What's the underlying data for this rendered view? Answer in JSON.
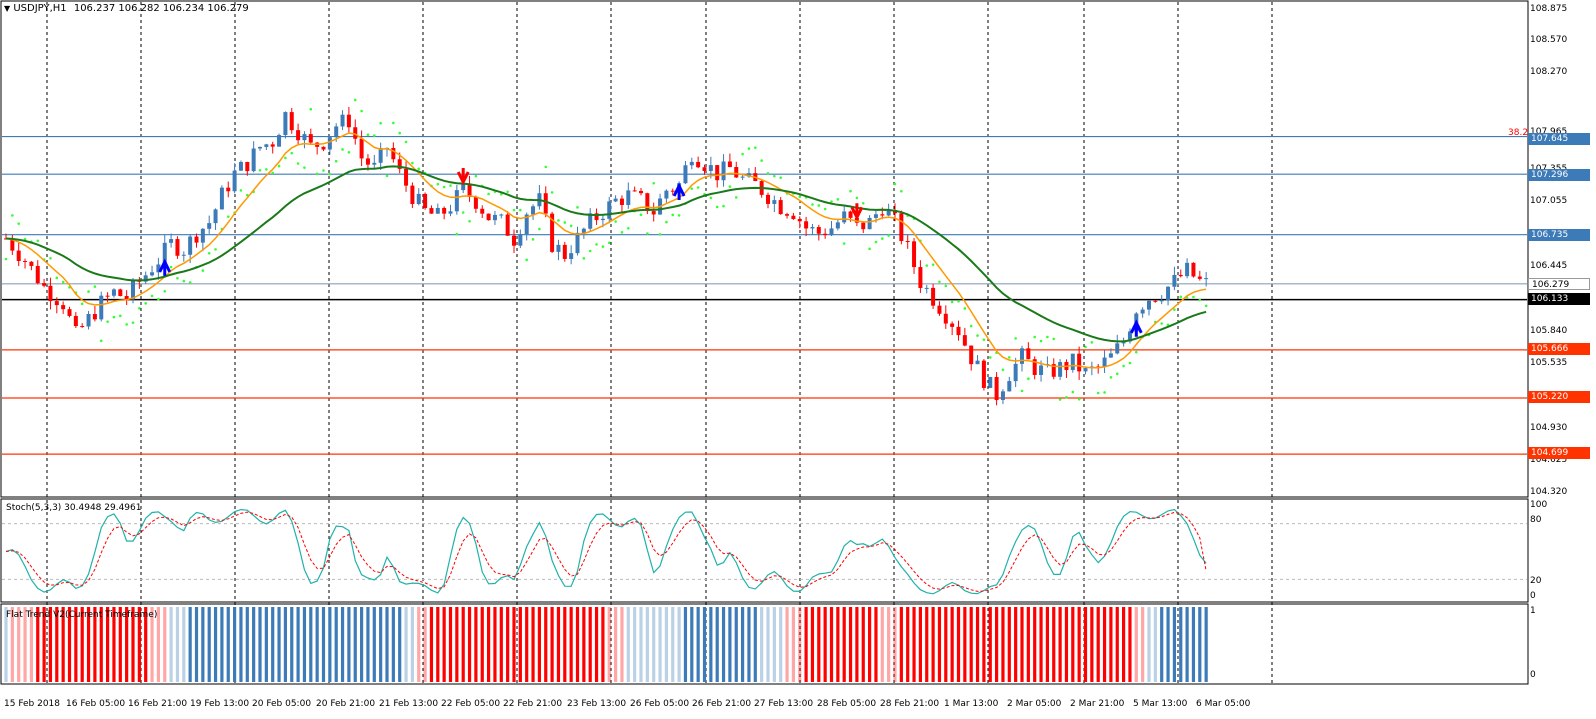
{
  "header": {
    "symbol_label": "USDJPY,H1",
    "ohlc": "106.237 106.282 106.234 106.279"
  },
  "stoch_pane": {
    "title": "Stoch(5,3,3) 30.4948 29.4961",
    "scale": [
      "100",
      "80",
      "20",
      "0"
    ]
  },
  "trend_pane": {
    "title": "Flat Trend V2(Current Timeframe)",
    "scale": [
      "1",
      "0"
    ]
  },
  "price_axis": {
    "ticks": [
      "108.875",
      "108.570",
      "108.270",
      "107.965",
      "107.355",
      "107.055",
      "106.445",
      "105.840",
      "105.535",
      "104.930",
      "104.625",
      "104.320"
    ]
  },
  "levels": [
    {
      "price": "107.645",
      "color": "#3d7ab8",
      "label_color": "#3d7ab8",
      "note": "38.2"
    },
    {
      "price": "107.296",
      "color": "#3d7ab8",
      "label_color": "#3d7ab8",
      "note": ""
    },
    {
      "price": "106.735",
      "color": "#3d7ab8",
      "label_color": "#3d7ab8",
      "note": ""
    },
    {
      "price": "106.279",
      "color": "#8aa0b8",
      "label_color": "#ffffff",
      "note": ""
    },
    {
      "price": "106.133",
      "color": "#000000",
      "label_color": "#000000",
      "note": ""
    },
    {
      "price": "105.666",
      "color": "#ff3300",
      "label_color": "#ff3300",
      "note": ""
    },
    {
      "price": "105.220",
      "color": "#ff3300",
      "label_color": "#ff3300",
      "note": ""
    },
    {
      "price": "104.699",
      "color": "#ff3300",
      "label_color": "#ff3300",
      "note": ""
    }
  ],
  "time_axis": [
    "15 Feb 2018",
    "16 Feb 05:00",
    "16 Feb 21:00",
    "19 Feb 13:00",
    "20 Feb 05:00",
    "20 Feb 21:00",
    "21 Feb 13:00",
    "22 Feb 05:00",
    "22 Feb 21:00",
    "23 Feb 13:00",
    "26 Feb 05:00",
    "26 Feb 21:00",
    "27 Feb 13:00",
    "28 Feb 05:00",
    "28 Feb 21:00",
    "1 Mar 13:00",
    "2 Mar 05:00",
    "2 Mar 21:00",
    "5 Mar 13:00",
    "6 Mar 05:00"
  ],
  "colors": {
    "bull": "#3d7ab8",
    "bear": "#ff0000",
    "ma_fast": "#ff9900",
    "ma_slow": "#1a7a1a",
    "sar": "#33ff33",
    "stoch_main": "#20b2aa",
    "stoch_signal": "#ff0000"
  },
  "chart_data": {
    "type": "candlestick",
    "symbol": "USDJPY",
    "timeframe": "H1",
    "ylim": [
      104.32,
      108.875
    ],
    "close_path": [
      [
        0,
        106.7
      ],
      [
        3,
        106.5
      ],
      [
        6,
        106.25
      ],
      [
        9,
        106.1
      ],
      [
        11,
        105.8
      ],
      [
        13,
        105.95
      ],
      [
        15,
        106.1
      ],
      [
        17,
        106.2
      ],
      [
        19,
        106.15
      ],
      [
        21,
        106.3
      ],
      [
        24,
        106.5
      ],
      [
        26,
        106.65
      ],
      [
        28,
        106.6
      ],
      [
        30,
        106.75
      ],
      [
        32,
        106.85
      ],
      [
        34,
        107.1
      ],
      [
        36,
        107.3
      ],
      [
        38,
        107.4
      ],
      [
        40,
        107.55
      ],
      [
        42,
        107.6
      ],
      [
        44,
        107.85
      ],
      [
        46,
        107.7
      ],
      [
        48,
        107.55
      ],
      [
        50,
        107.6
      ],
      [
        52,
        107.75
      ],
      [
        54,
        107.8
      ],
      [
        56,
        107.45
      ],
      [
        58,
        107.35
      ],
      [
        60,
        107.55
      ],
      [
        62,
        107.3
      ],
      [
        64,
        107.1
      ],
      [
        66,
        106.95
      ],
      [
        68,
        106.9
      ],
      [
        70,
        107.0
      ],
      [
        72,
        107.15
      ],
      [
        74,
        107.05
      ],
      [
        76,
        106.9
      ],
      [
        78,
        106.85
      ],
      [
        80,
        106.7
      ],
      [
        82,
        106.95
      ],
      [
        84,
        107.05
      ],
      [
        86,
        106.65
      ],
      [
        88,
        106.55
      ],
      [
        90,
        106.7
      ],
      [
        92,
        106.85
      ],
      [
        94,
        106.95
      ],
      [
        96,
        107.05
      ],
      [
        98,
        107.1
      ],
      [
        100,
        107.05
      ],
      [
        102,
        106.95
      ],
      [
        104,
        107.15
      ],
      [
        106,
        107.2
      ],
      [
        108,
        107.5
      ],
      [
        110,
        107.4
      ],
      [
        112,
        107.3
      ],
      [
        114,
        107.35
      ],
      [
        116,
        107.25
      ],
      [
        118,
        107.2
      ],
      [
        120,
        107.1
      ],
      [
        122,
        107.0
      ],
      [
        124,
        106.95
      ],
      [
        126,
        106.8
      ],
      [
        128,
        106.75
      ],
      [
        130,
        106.8
      ],
      [
        132,
        106.9
      ],
      [
        134,
        106.8
      ],
      [
        136,
        106.85
      ],
      [
        138,
        107.0
      ],
      [
        140,
        106.85
      ],
      [
        142,
        106.6
      ],
      [
        144,
        106.3
      ],
      [
        146,
        106.15
      ],
      [
        148,
        106.0
      ],
      [
        150,
        105.85
      ],
      [
        152,
        105.6
      ],
      [
        154,
        105.4
      ],
      [
        156,
        105.25
      ],
      [
        158,
        105.45
      ],
      [
        160,
        105.6
      ],
      [
        162,
        105.5
      ],
      [
        164,
        105.45
      ],
      [
        166,
        105.5
      ],
      [
        168,
        105.55
      ],
      [
        170,
        105.45
      ],
      [
        172,
        105.5
      ],
      [
        174,
        105.6
      ],
      [
        176,
        105.75
      ],
      [
        178,
        106.05
      ],
      [
        180,
        106.15
      ],
      [
        182,
        106.2
      ],
      [
        184,
        106.3
      ],
      [
        186,
        106.4
      ],
      [
        188,
        106.3
      ],
      [
        189,
        106.28
      ]
    ],
    "moving_averages": [
      {
        "color": "#ff9900",
        "period": "fast"
      },
      {
        "color": "#1a7a1a",
        "period": "slow"
      }
    ],
    "stochastic": {
      "k": 30.4948,
      "d": 29.4961,
      "levels": [
        80,
        20
      ]
    },
    "signals": [
      {
        "bar": 25,
        "type": "buy"
      },
      {
        "bar": 72,
        "type": "sell"
      },
      {
        "bar": 106,
        "type": "buy"
      },
      {
        "bar": 134,
        "type": "sell"
      },
      {
        "bar": 178,
        "type": "buy"
      }
    ]
  }
}
